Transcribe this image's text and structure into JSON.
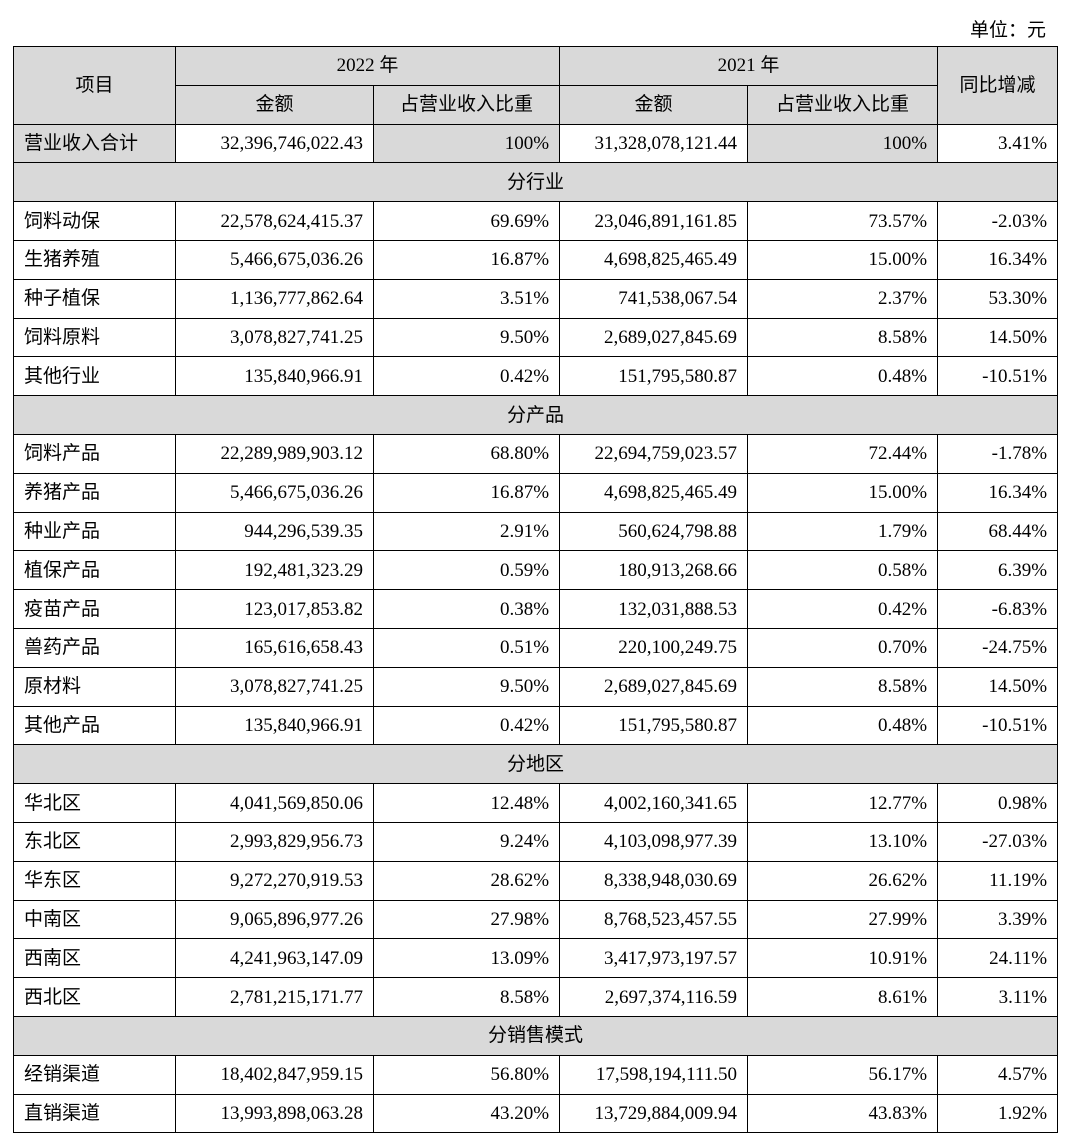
{
  "header": {
    "unit": "单位：元"
  },
  "table": {
    "columns": {
      "item": "项目",
      "year_2022": "2022 年",
      "year_2021": "2021 年",
      "yoy": "同比增减",
      "sub": [
        "金额",
        "占营业收入比重",
        "金额",
        "占营业收入比重"
      ]
    },
    "total": [
      "营业收入合计",
      "32,396,746,022.43",
      "100%",
      "31,328,078,121.44",
      "100%",
      "3.41%"
    ],
    "sections": [
      {
        "title": "分行业",
        "rows": [
          [
            "饲料动保",
            "22,578,624,415.37",
            "69.69%",
            "23,046,891,161.85",
            "73.57%",
            "-2.03%"
          ],
          [
            "生猪养殖",
            "5,466,675,036.26",
            "16.87%",
            "4,698,825,465.49",
            "15.00%",
            "16.34%"
          ],
          [
            "种子植保",
            "1,136,777,862.64",
            "3.51%",
            "741,538,067.54",
            "2.37%",
            "53.30%"
          ],
          [
            "饲料原料",
            "3,078,827,741.25",
            "9.50%",
            "2,689,027,845.69",
            "8.58%",
            "14.50%"
          ],
          [
            "其他行业",
            "135,840,966.91",
            "0.42%",
            "151,795,580.87",
            "0.48%",
            "-10.51%"
          ]
        ]
      },
      {
        "title": "分产品",
        "rows": [
          [
            "饲料产品",
            "22,289,989,903.12",
            "68.80%",
            "22,694,759,023.57",
            "72.44%",
            "-1.78%"
          ],
          [
            "养猪产品",
            "5,466,675,036.26",
            "16.87%",
            "4,698,825,465.49",
            "15.00%",
            "16.34%"
          ],
          [
            "种业产品",
            "944,296,539.35",
            "2.91%",
            "560,624,798.88",
            "1.79%",
            "68.44%"
          ],
          [
            "植保产品",
            "192,481,323.29",
            "0.59%",
            "180,913,268.66",
            "0.58%",
            "6.39%"
          ],
          [
            "疫苗产品",
            "123,017,853.82",
            "0.38%",
            "132,031,888.53",
            "0.42%",
            "-6.83%"
          ],
          [
            "兽药产品",
            "165,616,658.43",
            "0.51%",
            "220,100,249.75",
            "0.70%",
            "-24.75%"
          ],
          [
            "原材料",
            "3,078,827,741.25",
            "9.50%",
            "2,689,027,845.69",
            "8.58%",
            "14.50%"
          ],
          [
            "其他产品",
            "135,840,966.91",
            "0.42%",
            "151,795,580.87",
            "0.48%",
            "-10.51%"
          ]
        ]
      },
      {
        "title": "分地区",
        "rows": [
          [
            "华北区",
            "4,041,569,850.06",
            "12.48%",
            "4,002,160,341.65",
            "12.77%",
            "0.98%"
          ],
          [
            "东北区",
            "2,993,829,956.73",
            "9.24%",
            "4,103,098,977.39",
            "13.10%",
            "-27.03%"
          ],
          [
            "华东区",
            "9,272,270,919.53",
            "28.62%",
            "8,338,948,030.69",
            "26.62%",
            "11.19%"
          ],
          [
            "中南区",
            "9,065,896,977.26",
            "27.98%",
            "8,768,523,457.55",
            "27.99%",
            "3.39%"
          ],
          [
            "西南区",
            "4,241,963,147.09",
            "13.09%",
            "3,417,973,197.57",
            "10.91%",
            "24.11%"
          ],
          [
            "西北区",
            "2,781,215,171.77",
            "8.58%",
            "2,697,374,116.59",
            "8.61%",
            "3.11%"
          ]
        ]
      },
      {
        "title": "分销售模式",
        "rows": [
          [
            "经销渠道",
            "18,402,847,959.15",
            "56.80%",
            "17,598,194,111.50",
            "56.17%",
            "4.57%"
          ],
          [
            "直销渠道",
            "13,993,898,063.28",
            "43.20%",
            "13,729,884,009.94",
            "43.83%",
            "1.92%"
          ]
        ]
      }
    ]
  }
}
